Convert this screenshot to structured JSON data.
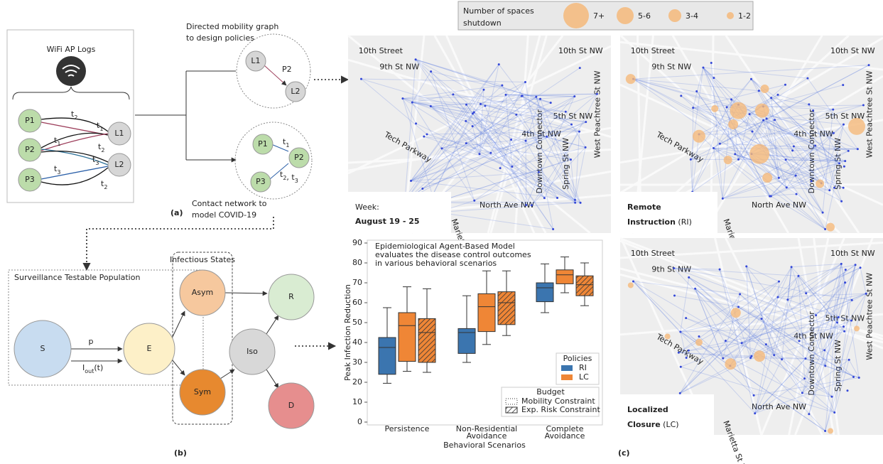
{
  "panel_a": {
    "source_title": "WiFi AP Logs",
    "people": [
      "P1",
      "P2",
      "P3"
    ],
    "locations": [
      "L1",
      "L2"
    ],
    "log_edges": [
      {
        "base": "t",
        "sub": "2"
      },
      {
        "base": "t",
        "sub": "1"
      },
      {
        "base": "t",
        "sub": "1"
      },
      {
        "base": "t",
        "sub": "2"
      },
      {
        "base": "t",
        "sub": "3"
      },
      {
        "base": "t",
        "sub": "3"
      },
      {
        "base": "t",
        "sub": "2"
      }
    ],
    "mobility_caption": [
      "Directed mobility graph",
      "to design policies"
    ],
    "mobility_nodes": [
      "L1",
      "P2",
      "L2"
    ],
    "contact_nodes": [
      "P1",
      "P2",
      "P3"
    ],
    "contact_edges": [
      [
        {
          "base": "t",
          "sub": "1"
        }
      ],
      [
        {
          "base": "t",
          "sub": "2"
        },
        {
          "base": ", t",
          "sub": "3"
        }
      ]
    ],
    "contact_caption": [
      "Contact network to",
      "model COVID-19"
    ],
    "label": "(a)"
  },
  "panel_b": {
    "population": "Surveillance Testable Population",
    "infectious": "Infectious States",
    "states": [
      "S",
      "E",
      "Asym",
      "Sym",
      "Iso",
      "R",
      "D"
    ],
    "rate": "p",
    "outflow": {
      "base": "I",
      "sub": "out",
      "tail": "(t)"
    },
    "label": "(b)"
  },
  "panel_c": {
    "legend_title": [
      "Number of spaces",
      "shutdown"
    ],
    "legend_sizes": [
      "7+",
      "5-6",
      "3-4",
      "1-2"
    ],
    "legend_color": "#f5b97a",
    "week": [
      "Week:",
      "August 19 - 25"
    ],
    "map_titles": [
      [
        [
          {
            "text": "Remote",
            "bold": true
          }
        ],
        [
          {
            "text": "Instruction",
            "bold": true
          },
          {
            "text": " (RI)"
          }
        ]
      ],
      [
        [
          {
            "text": "Localized",
            "bold": true
          }
        ],
        [
          {
            "text": "Closure",
            "bold": true
          },
          {
            "text": " (LC)"
          }
        ]
      ]
    ],
    "streets": [
      "10th Street",
      "9th St NW",
      "10th St NW",
      "5th St NW",
      "4th St NW",
      "Tech Parkway",
      "West Peachtree St NW",
      "Spring St NW",
      "Downtown Connector",
      "North Ave NW",
      "Marietta St NW"
    ],
    "label": "(c)"
  },
  "chart_data": {
    "type": "box",
    "annotation": [
      "Epidemiological Agent-Based Model",
      "evaluates the disease  control outcomes",
      "in various behavioral scenarios"
    ],
    "ylabel": "Peak Infection Reduction",
    "xlabel": "Behavioral Scenarios",
    "categories": [
      [
        "Persistence"
      ],
      [
        "Non-Residential",
        "Avoidance"
      ],
      [
        "Complete",
        "Avoidance"
      ]
    ],
    "ylim": [
      0,
      90
    ],
    "yticks": [
      0,
      10,
      20,
      30,
      40,
      50,
      60,
      70,
      80,
      90
    ],
    "policies_title": "Policies",
    "policies": [
      {
        "name": "RI",
        "color": "#3b75af"
      },
      {
        "name": "LC",
        "color": "#ef8636"
      }
    ],
    "budget_title": "Budget",
    "budgets": [
      "Mobility Constraint",
      "Exp. Risk Constraint"
    ],
    "series": [
      {
        "color": "#3b75af",
        "hatch": false,
        "boxes": [
          {
            "min": 19.5,
            "q1": 24,
            "median": 37.5,
            "q3": 42.5,
            "max": 57.5
          },
          {
            "min": 30,
            "q1": 34.5,
            "median": 45,
            "q3": 47,
            "max": 63.5
          },
          {
            "min": 55,
            "q1": 60.5,
            "median": 67.5,
            "q3": 70,
            "max": 79.5
          }
        ]
      },
      {
        "color": "#ef8636",
        "hatch": false,
        "boxes": [
          {
            "min": 25.5,
            "q1": 30.5,
            "median": 48.5,
            "q3": 55,
            "max": 68
          },
          {
            "min": 39,
            "q1": 45.5,
            "median": 58,
            "q3": 64.5,
            "max": 76
          },
          {
            "min": 65,
            "q1": 69.5,
            "median": 74,
            "q3": 76.5,
            "max": 83
          }
        ]
      },
      {
        "color": "#ef8636",
        "hatch": true,
        "boxes": [
          {
            "min": 25,
            "q1": 30,
            "median": 45,
            "q3": 52,
            "max": 67
          },
          {
            "min": 43.5,
            "q1": 49,
            "median": 60,
            "q3": 65.5,
            "max": 76
          },
          {
            "min": 58.5,
            "q1": 63.5,
            "median": 69,
            "q3": 73.5,
            "max": 80
          }
        ]
      }
    ]
  }
}
